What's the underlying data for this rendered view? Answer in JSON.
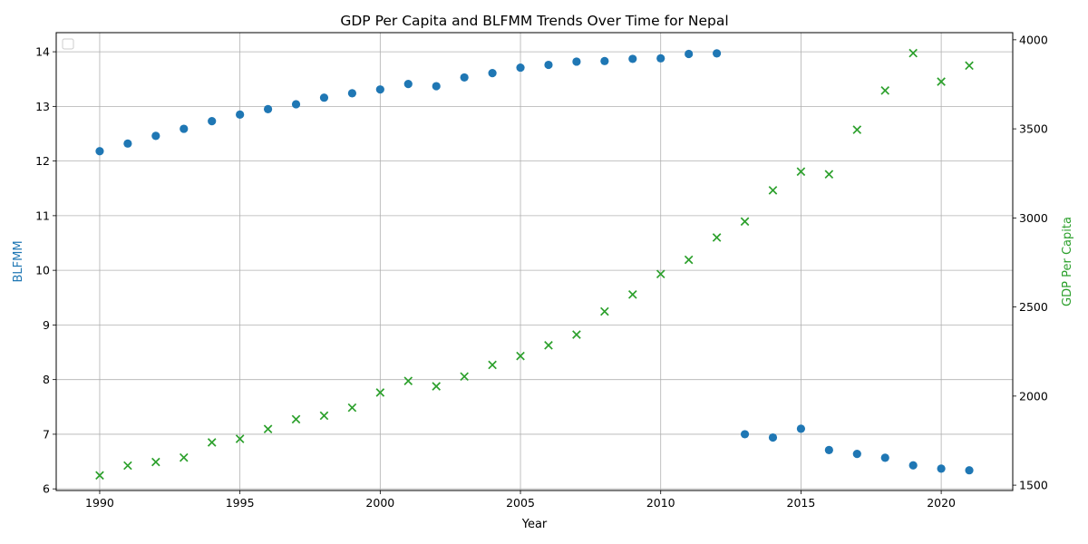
{
  "chart_data": {
    "type": "scatter",
    "title": "GDP Per Capita and BLFMM Trends Over Time for Nepal",
    "xlabel": "Year",
    "ylabel_left": "BLFMM",
    "ylabel_right": "GDP Per Capita",
    "xlim": [
      1988.45,
      2022.55
    ],
    "ylim_left": [
      5.97,
      14.35
    ],
    "ylim_right": [
      1470,
      4040
    ],
    "x_ticks": [
      1990,
      1995,
      2000,
      2005,
      2010,
      2015,
      2020
    ],
    "y_ticks_left": [
      6,
      7,
      8,
      9,
      10,
      11,
      12,
      13,
      14
    ],
    "y_ticks_right": [
      1500,
      2000,
      2500,
      3000,
      3500,
      4000
    ],
    "grid": true,
    "legend": "top-left (empty)",
    "colors": {
      "blfmm": "#1f77b4",
      "gdp": "#2ca02c"
    },
    "series": [
      {
        "axis": "left",
        "marker": "circle",
        "points": [
          [
            1990,
            12.18
          ],
          [
            1991,
            12.32
          ],
          [
            1992,
            12.46
          ],
          [
            1993,
            12.59
          ],
          [
            1994,
            12.73
          ],
          [
            1995,
            12.85
          ],
          [
            1996,
            12.95
          ],
          [
            1997,
            13.04
          ],
          [
            1998,
            13.16
          ],
          [
            1999,
            13.24
          ],
          [
            2000,
            13.31
          ],
          [
            2001,
            13.41
          ],
          [
            2002,
            13.37
          ],
          [
            2003,
            13.53
          ],
          [
            2004,
            13.61
          ],
          [
            2005,
            13.71
          ],
          [
            2006,
            13.76
          ],
          [
            2007,
            13.82
          ],
          [
            2008,
            13.83
          ],
          [
            2009,
            13.87
          ],
          [
            2010,
            13.88
          ],
          [
            2011,
            13.96
          ],
          [
            2012,
            13.97
          ],
          [
            2013,
            7.0
          ],
          [
            2014,
            6.94
          ],
          [
            2015,
            7.1
          ],
          [
            2016,
            6.71
          ],
          [
            2017,
            6.64
          ],
          [
            2018,
            6.57
          ],
          [
            2019,
            6.43
          ],
          [
            2020,
            6.37
          ],
          [
            2021,
            6.34
          ]
        ]
      },
      {
        "axis": "right",
        "marker": "x",
        "points": [
          [
            1990,
            1555
          ],
          [
            1991,
            1610
          ],
          [
            1992,
            1630
          ],
          [
            1993,
            1655
          ],
          [
            1994,
            1740
          ],
          [
            1995,
            1760
          ],
          [
            1996,
            1815
          ],
          [
            1997,
            1870
          ],
          [
            1998,
            1890
          ],
          [
            1999,
            1935
          ],
          [
            2000,
            2020
          ],
          [
            2001,
            2085
          ],
          [
            2002,
            2055
          ],
          [
            2003,
            2110
          ],
          [
            2004,
            2175
          ],
          [
            2005,
            2225
          ],
          [
            2006,
            2285
          ],
          [
            2007,
            2345
          ],
          [
            2008,
            2475
          ],
          [
            2009,
            2570
          ],
          [
            2010,
            2685
          ],
          [
            2011,
            2765
          ],
          [
            2012,
            2890
          ],
          [
            2013,
            2980
          ],
          [
            2014,
            3155
          ],
          [
            2015,
            3260
          ],
          [
            2016,
            3245
          ],
          [
            2017,
            3495
          ],
          [
            2018,
            3715
          ],
          [
            2019,
            3925
          ],
          [
            2020,
            3765
          ],
          [
            2021,
            3855
          ]
        ]
      }
    ]
  }
}
